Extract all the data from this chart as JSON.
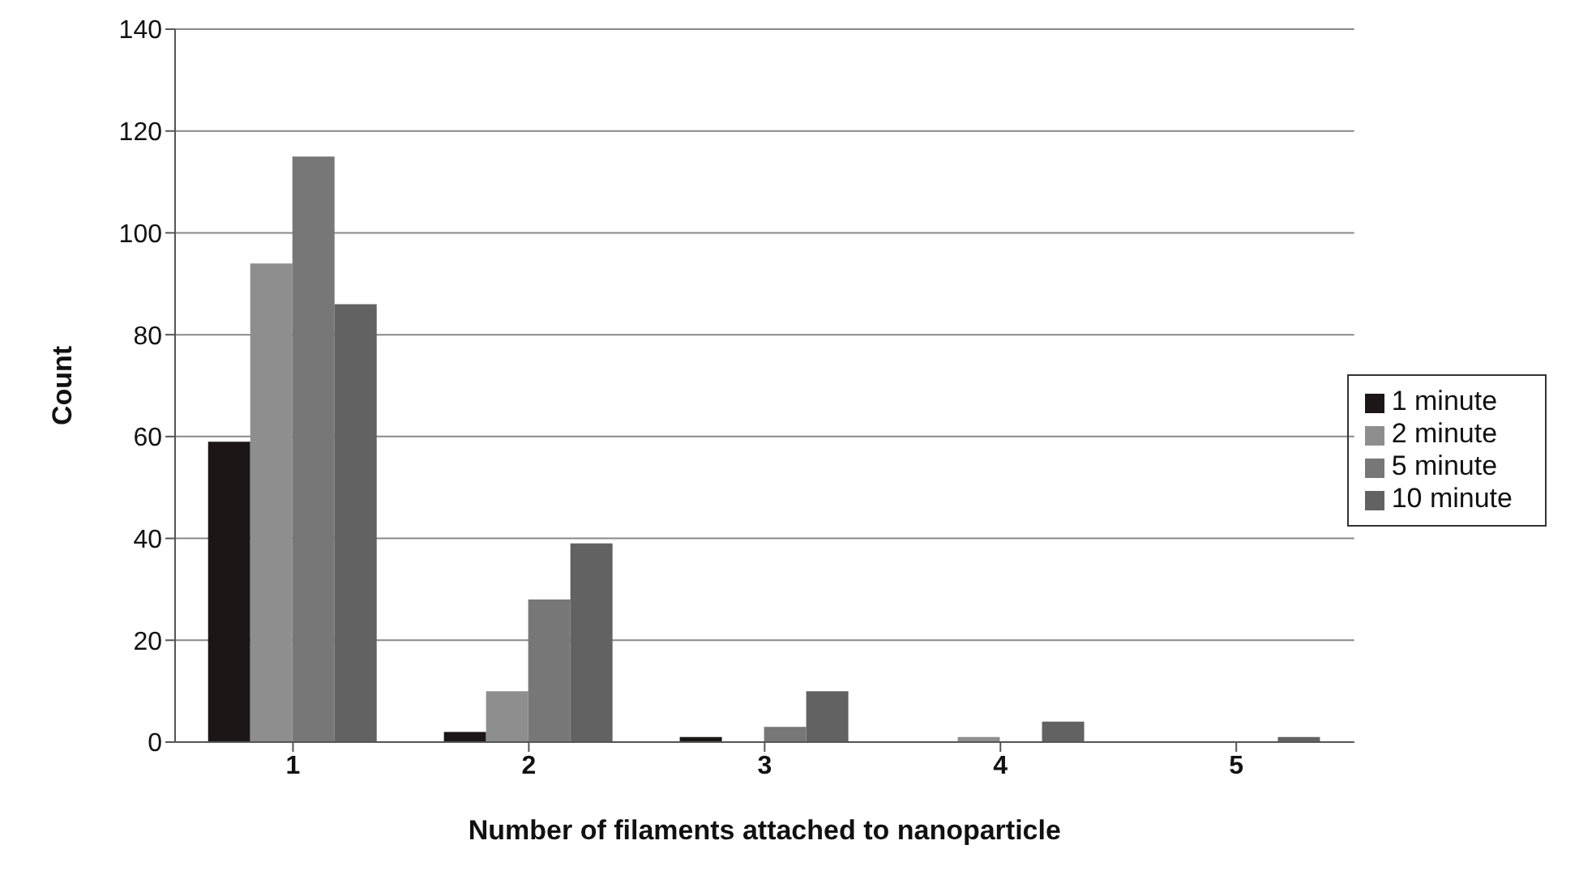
{
  "chart_data": {
    "type": "bar",
    "xlabel": "Number of filaments attached to nanoparticle",
    "ylabel": "Count",
    "categories": [
      "1",
      "2",
      "3",
      "4",
      "5"
    ],
    "series": [
      {
        "name": "1 minute",
        "color": "#1c1616",
        "values": [
          59,
          2,
          1,
          0,
          0
        ]
      },
      {
        "name": "2 minute",
        "color": "#8e8e8e",
        "values": [
          94,
          10,
          0,
          1,
          0
        ]
      },
      {
        "name": "5 minute",
        "color": "#777777",
        "values": [
          115,
          28,
          3,
          0,
          0
        ]
      },
      {
        "name": "10 minute",
        "color": "#626262",
        "values": [
          86,
          39,
          10,
          4,
          1
        ]
      }
    ],
    "ylim": [
      0,
      140
    ],
    "yticks": [
      0,
      20,
      40,
      60,
      80,
      100,
      120,
      140
    ],
    "grid": "y",
    "legend": "right"
  }
}
